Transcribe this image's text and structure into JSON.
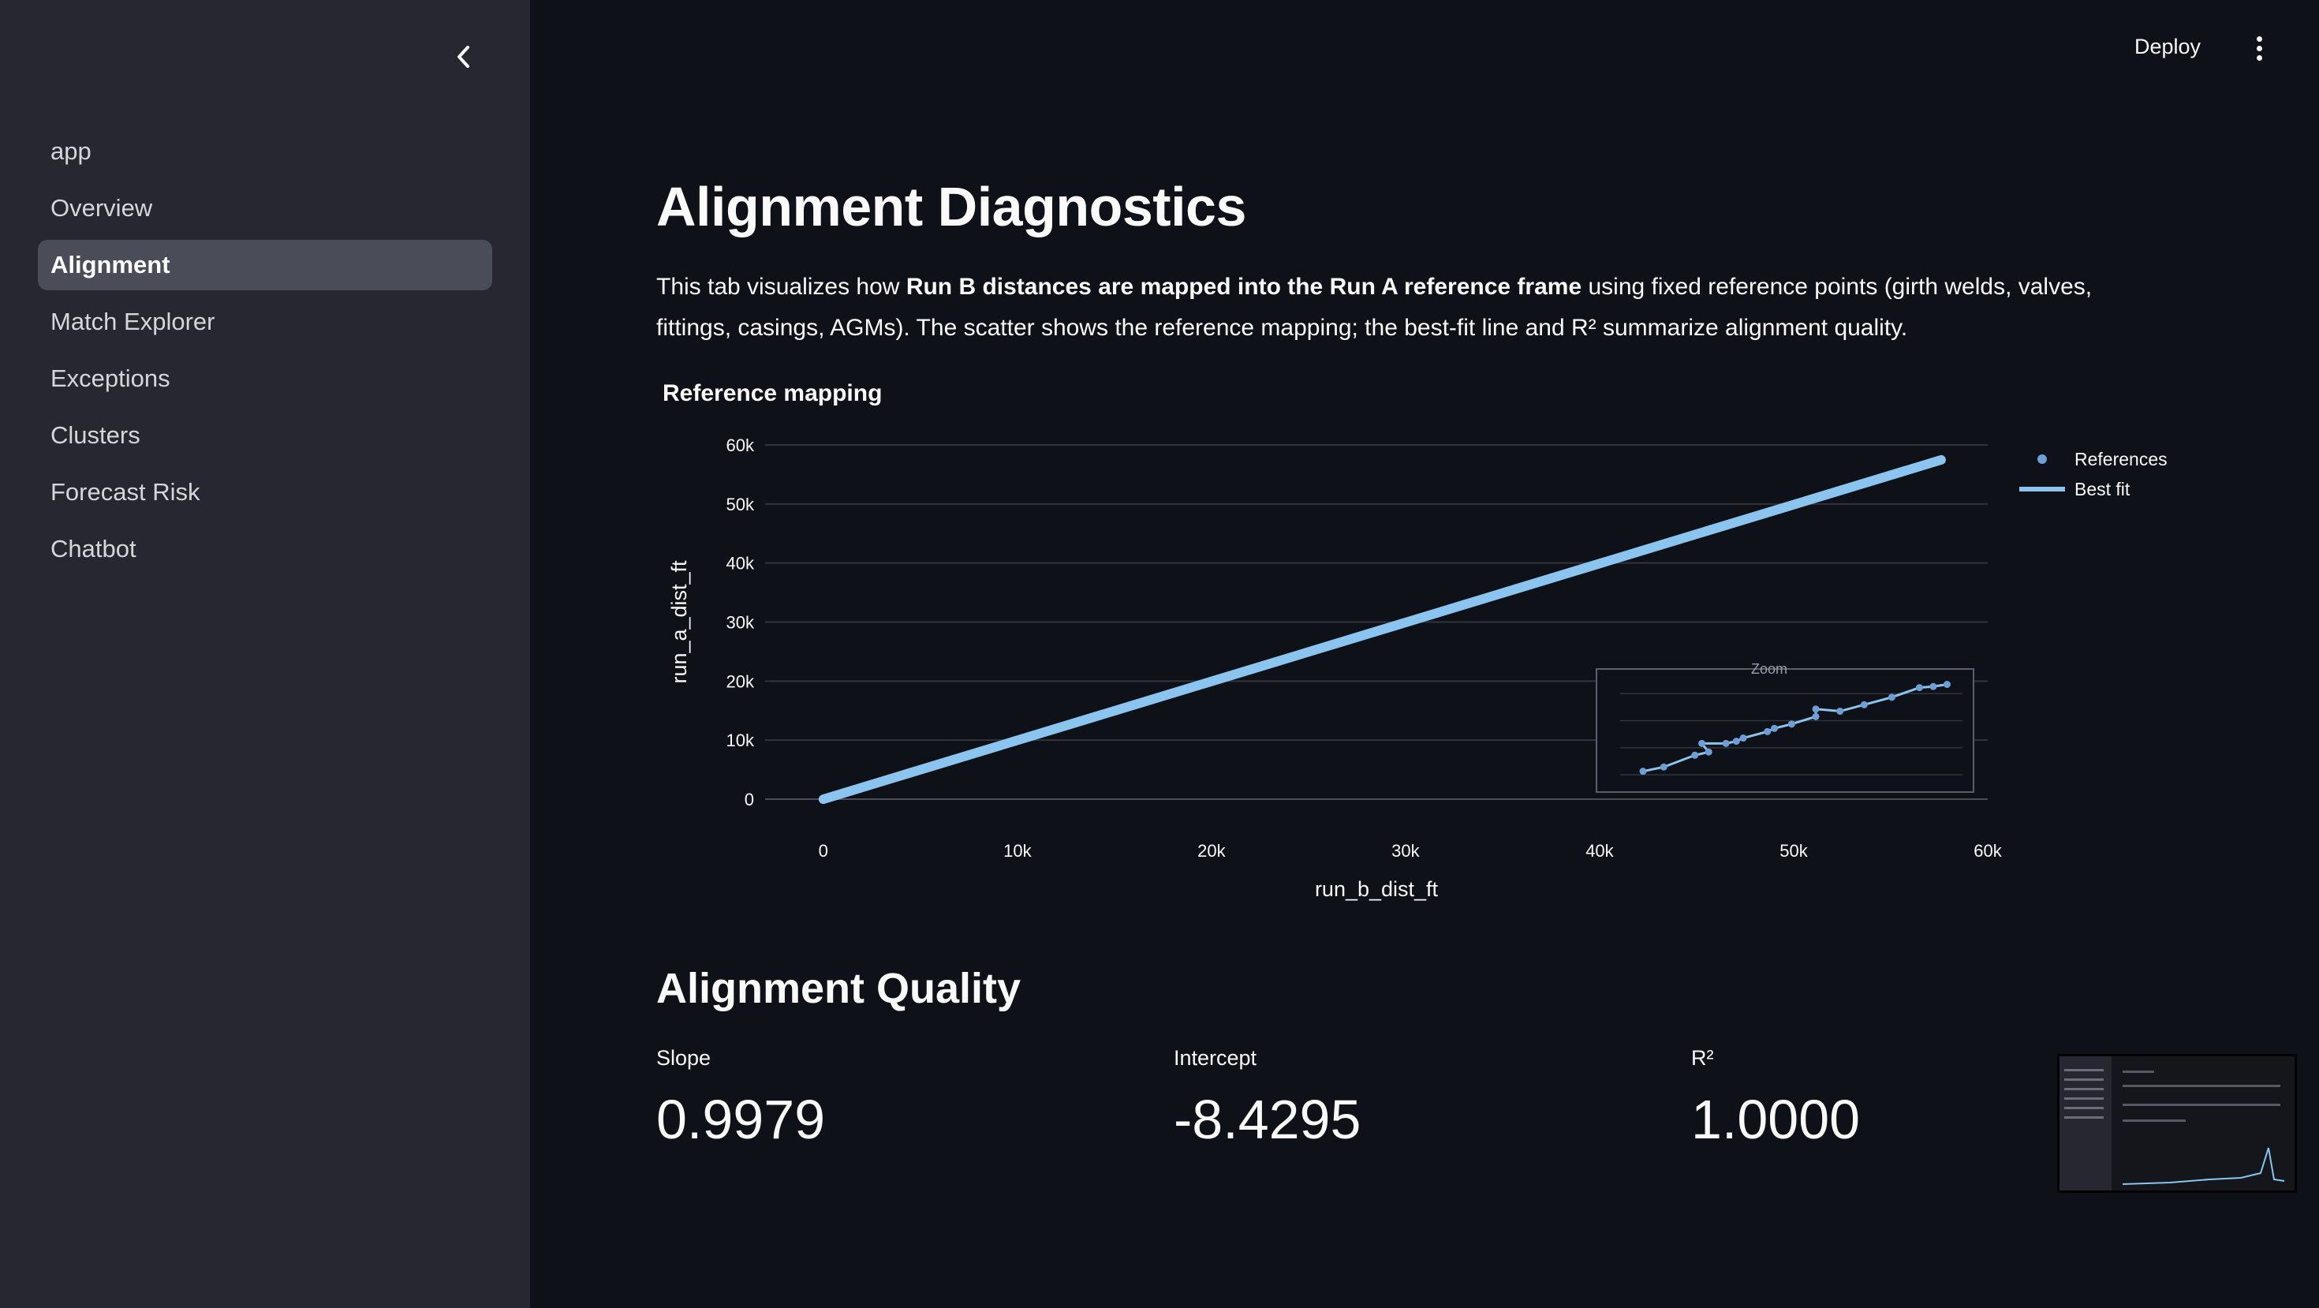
{
  "header": {
    "deploy_label": "Deploy"
  },
  "sidebar": {
    "items": [
      {
        "label": "app",
        "active": false
      },
      {
        "label": "Overview",
        "active": false
      },
      {
        "label": "Alignment",
        "active": true
      },
      {
        "label": "Match Explorer",
        "active": false
      },
      {
        "label": "Exceptions",
        "active": false
      },
      {
        "label": "Clusters",
        "active": false
      },
      {
        "label": "Forecast Risk",
        "active": false
      },
      {
        "label": "Chatbot",
        "active": false
      }
    ]
  },
  "main": {
    "title": "Alignment Diagnostics",
    "intro": {
      "part1": "This tab visualizes how ",
      "bold": "Run B distances are mapped into the Run A reference frame",
      "part2": " using fixed reference points (girth welds, valves, fittings, casings, AGMs). The scatter shows the reference mapping; the best-fit line and R² summarize alignment quality."
    },
    "chart_title": "Reference mapping",
    "section_title": "Alignment Quality",
    "metrics": [
      {
        "label": "Slope",
        "value": "0.9979"
      },
      {
        "label": "Intercept",
        "value": "-8.4295"
      },
      {
        "label": "R²",
        "value": "1.0000"
      }
    ]
  },
  "chart_data": {
    "type": "scatter",
    "title": "Reference mapping",
    "xlabel": "run_b_dist_ft",
    "ylabel": "run_a_dist_ft",
    "xlim": [
      -3000,
      60000
    ],
    "ylim": [
      0,
      60000
    ],
    "x_ticks": [
      {
        "v": 0,
        "label": "0"
      },
      {
        "v": 10000,
        "label": "10k"
      },
      {
        "v": 20000,
        "label": "20k"
      },
      {
        "v": 30000,
        "label": "30k"
      },
      {
        "v": 40000,
        "label": "40k"
      },
      {
        "v": 50000,
        "label": "50k"
      },
      {
        "v": 60000,
        "label": "60k"
      }
    ],
    "y_ticks": [
      {
        "v": 0,
        "label": "0"
      },
      {
        "v": 10000,
        "label": "10k"
      },
      {
        "v": 20000,
        "label": "20k"
      },
      {
        "v": 30000,
        "label": "30k"
      },
      {
        "v": 40000,
        "label": "40k"
      },
      {
        "v": 50000,
        "label": "50k"
      },
      {
        "v": 60000,
        "label": "60k"
      }
    ],
    "grid": true,
    "legend_position": "right",
    "series": [
      {
        "name": "References",
        "kind": "markers",
        "color": "#6f9ed6",
        "x": [
          0,
          2000,
          4000,
          7000,
          9000,
          12000,
          15000,
          17000,
          20000,
          23000,
          26000,
          28000,
          31000,
          34000,
          37000,
          40000,
          43000,
          46000,
          49000,
          52000,
          55000,
          57000
        ],
        "y": [
          0,
          2000,
          4000,
          7000,
          9000,
          12000,
          15000,
          17000,
          20000,
          23000,
          26000,
          28000,
          31000,
          34000,
          37000,
          40000,
          43000,
          46000,
          49000,
          52000,
          55000,
          57000
        ]
      },
      {
        "name": "Best fit",
        "kind": "line",
        "color": "#8cc4f0",
        "x": [
          0,
          57600
        ],
        "y": [
          -8.4295,
          57470
        ]
      }
    ],
    "inset": {
      "title": "Zoom",
      "points": [
        [
          0.08,
          0.88
        ],
        [
          0.14,
          0.84
        ],
        [
          0.23,
          0.73
        ],
        [
          0.27,
          0.7
        ],
        [
          0.25,
          0.62
        ],
        [
          0.32,
          0.62
        ],
        [
          0.35,
          0.6
        ],
        [
          0.37,
          0.57
        ],
        [
          0.44,
          0.51
        ],
        [
          0.46,
          0.48
        ],
        [
          0.51,
          0.44
        ],
        [
          0.58,
          0.37
        ],
        [
          0.58,
          0.3
        ],
        [
          0.65,
          0.32
        ],
        [
          0.72,
          0.26
        ],
        [
          0.8,
          0.19
        ],
        [
          0.88,
          0.1
        ],
        [
          0.92,
          0.09
        ],
        [
          0.96,
          0.07
        ]
      ]
    }
  }
}
